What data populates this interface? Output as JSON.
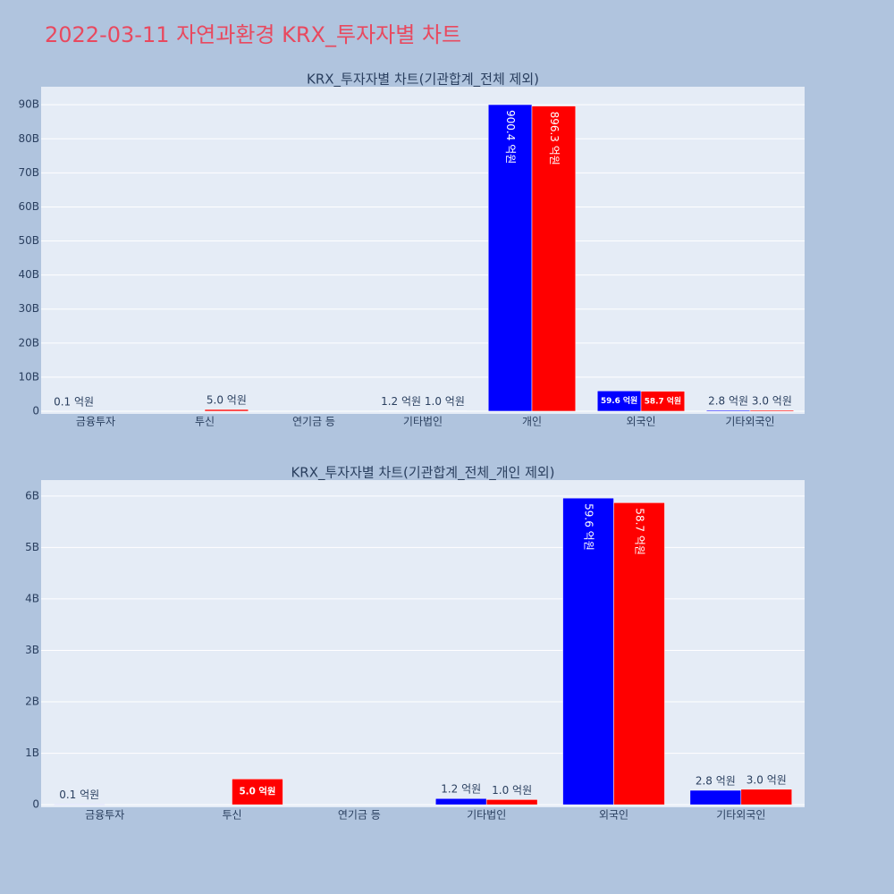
{
  "title": "2022-03-11 자연과환경 KRX_투자자별 차트",
  "chart_data": [
    {
      "type": "bar",
      "title": "KRX_투자자별 차트(기관합계_전체 제외)",
      "categories": [
        "금융투자",
        "투신",
        "연기금 등",
        "기타법인",
        "개인",
        "외국인",
        "기타외국인"
      ],
      "series": [
        {
          "color": "blue",
          "values": [
            10000000,
            null,
            null,
            120000000,
            90040000000,
            5960000000,
            280000000
          ],
          "value_labels": [
            "0.1 억원",
            null,
            null,
            "1.2 억원",
            "900.4 억원",
            "59.6 억원",
            "2.8 억원"
          ]
        },
        {
          "color": "red",
          "values": [
            null,
            500000000,
            null,
            100000000,
            89630000000,
            5870000000,
            300000000
          ],
          "value_labels": [
            null,
            "5.0 억원",
            null,
            "1.0 억원",
            "896.3 억원",
            "58.7 억원",
            "3.0 억원"
          ]
        }
      ],
      "ylim": [
        -800000000,
        95300000000
      ],
      "yticks": [
        0,
        {
          "value": 10000000000,
          "label": "10B"
        },
        {
          "value": 20000000000,
          "label": "20B"
        },
        {
          "value": 30000000000,
          "label": "30B"
        },
        {
          "value": 40000000000,
          "label": "40B"
        },
        {
          "value": 50000000000,
          "label": "50B"
        },
        {
          "value": 60000000000,
          "label": "60B"
        },
        {
          "value": 70000000000,
          "label": "70B"
        },
        {
          "value": 80000000000,
          "label": "80B"
        },
        {
          "value": 90000000000,
          "label": "90B"
        }
      ],
      "grid": true
    },
    {
      "type": "bar",
      "title": "KRX_투자자별 차트(기관합계_전체_개인 제외)",
      "categories": [
        "금융투자",
        "투신",
        "연기금 등",
        "기타법인",
        "외국인",
        "기타외국인"
      ],
      "series": [
        {
          "color": "blue",
          "values": [
            10000000,
            null,
            null,
            120000000,
            5960000000,
            280000000
          ],
          "value_labels": [
            "0.1 억원",
            null,
            null,
            "1.2 억원",
            "59.6 억원",
            "2.8 억원"
          ]
        },
        {
          "color": "red",
          "values": [
            null,
            500000000,
            null,
            100000000,
            5870000000,
            300000000
          ],
          "value_labels": [
            null,
            "5.0 억원",
            null,
            "1.0 억원",
            "58.7 억원",
            "3.0 억원"
          ]
        }
      ],
      "ylim": [
        -50000000,
        6310000000
      ],
      "yticks": [
        0,
        {
          "value": 1000000000,
          "label": "1B"
        },
        {
          "value": 2000000000,
          "label": "2B"
        },
        {
          "value": 3000000000,
          "label": "3B"
        },
        {
          "value": 4000000000,
          "label": "4B"
        },
        {
          "value": 5000000000,
          "label": "5B"
        },
        {
          "value": 6000000000,
          "label": "6B"
        }
      ],
      "grid": true
    }
  ]
}
